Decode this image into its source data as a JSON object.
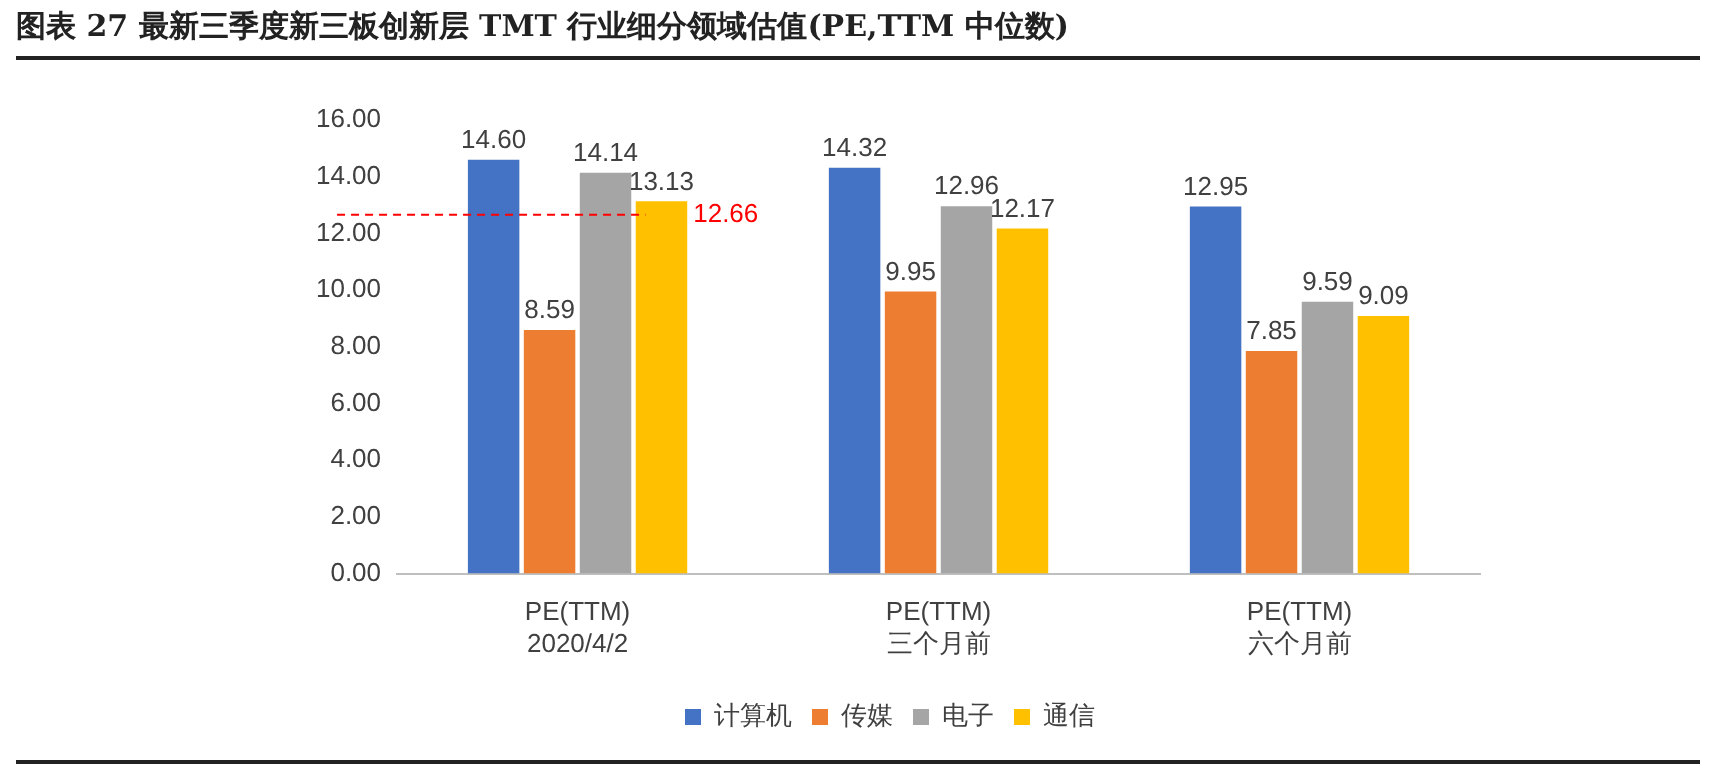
{
  "chart_data": {
    "type": "bar",
    "title": "图表 27 最新三季度新三板创新层 TMT 行业细分领域估值(PE,TTM 中位数)",
    "categories": [
      "PE(TTM)\n2020/4/2",
      "PE(TTM)\n三个月前",
      "PE(TTM)\n六个月前"
    ],
    "series": [
      {
        "name": "计算机",
        "color": "#4472c4",
        "values": [
          14.6,
          14.32,
          12.95
        ],
        "value_labels": [
          "14.60",
          "14.32",
          "12.95"
        ]
      },
      {
        "name": "传媒",
        "color": "#ed7d31",
        "values": [
          8.59,
          9.95,
          7.85
        ],
        "value_labels": [
          "8.59",
          "9.95",
          "7.85"
        ]
      },
      {
        "name": "电子",
        "color": "#a5a5a5",
        "values": [
          14.14,
          12.96,
          9.59
        ],
        "value_labels": [
          "14.14",
          "12.96",
          "9.59"
        ]
      },
      {
        "name": "通信",
        "color": "#ffc000",
        "values": [
          13.13,
          12.17,
          9.09
        ],
        "value_labels": [
          "13.13",
          "12.17",
          "9.09"
        ]
      }
    ],
    "ylim": [
      0,
      16
    ],
    "yticks": [
      {
        "value": 0,
        "label": "0.00"
      },
      {
        "value": 2,
        "label": "2.00"
      },
      {
        "value": 4,
        "label": "4.00"
      },
      {
        "value": 6,
        "label": "6.00"
      },
      {
        "value": 8,
        "label": "8.00"
      },
      {
        "value": 10,
        "label": "10.00"
      },
      {
        "value": 12,
        "label": "12.00"
      },
      {
        "value": 14,
        "label": "14.00"
      },
      {
        "value": 16,
        "label": "16.00"
      }
    ],
    "ref_lines": [
      {
        "axis": "y",
        "value": 12.66,
        "label": "12.66",
        "color": "#ff0000",
        "line_style": "dashed"
      }
    ],
    "grid": false,
    "legend": "bottom"
  }
}
